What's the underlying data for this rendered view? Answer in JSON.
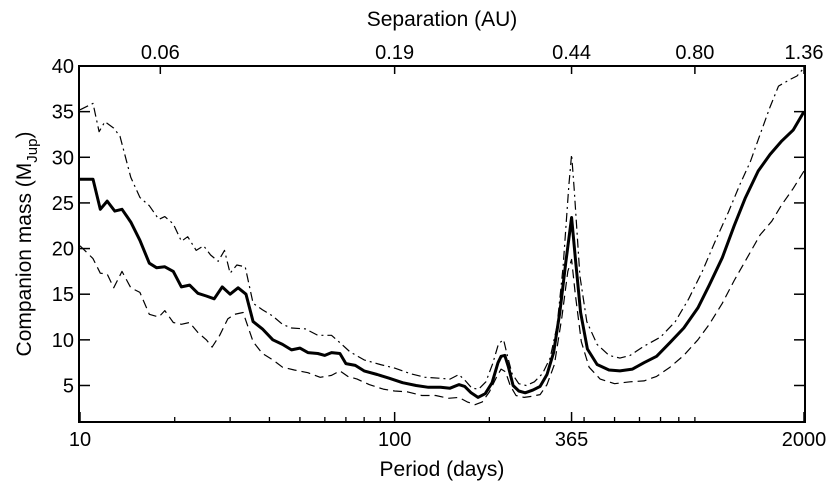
{
  "chart_data": {
    "type": "line",
    "xlabel": "Period (days)",
    "xscale": "log",
    "xlim": [
      10,
      2000
    ],
    "xticks": [
      {
        "value": 10,
        "label": "10"
      },
      {
        "value": 100,
        "label": "100"
      },
      {
        "value": 365,
        "label": "365"
      },
      {
        "value": 2000,
        "label": "2000"
      }
    ],
    "top_axis_label": "Separation (AU)",
    "top_ticks": [
      {
        "period": 18,
        "label": "0.06"
      },
      {
        "period": 100,
        "label": "0.19"
      },
      {
        "period": 365,
        "label": "0.44"
      },
      {
        "period": 900,
        "label": "0.80"
      },
      {
        "period": 2000,
        "label": "1.36"
      }
    ],
    "ylabel": "Companion mass (M",
    "ylabel_sub": "Jup",
    "ylabel_close": ")",
    "ylim": [
      1,
      40
    ],
    "yticks": [
      5,
      10,
      15,
      20,
      25,
      30,
      35,
      40
    ],
    "grid": false,
    "series": [
      {
        "style": "solid",
        "color": "#000000",
        "width": 3,
        "points": [
          [
            10,
            27.6
          ],
          [
            11,
            27.6
          ],
          [
            11.6,
            24.3
          ],
          [
            12.2,
            25.2
          ],
          [
            12.9,
            24.1
          ],
          [
            13.6,
            24.3
          ],
          [
            14.5,
            22.9
          ],
          [
            15.5,
            20.9
          ],
          [
            16.6,
            18.4
          ],
          [
            17.5,
            17.9
          ],
          [
            18.6,
            18.0
          ],
          [
            19.8,
            17.5
          ],
          [
            21,
            15.8
          ],
          [
            22.3,
            16.0
          ],
          [
            23.7,
            15.1
          ],
          [
            25.2,
            14.8
          ],
          [
            26.7,
            14.5
          ],
          [
            28.3,
            15.8
          ],
          [
            30,
            15.0
          ],
          [
            31.8,
            15.7
          ],
          [
            33.7,
            15.0
          ],
          [
            35.5,
            12.0
          ],
          [
            38,
            11.2
          ],
          [
            41,
            10.0
          ],
          [
            44,
            9.5
          ],
          [
            47,
            8.9
          ],
          [
            50,
            9.1
          ],
          [
            53,
            8.6
          ],
          [
            57,
            8.5
          ],
          [
            60,
            8.3
          ],
          [
            63,
            8.6
          ],
          [
            67,
            8.5
          ],
          [
            70,
            7.4
          ],
          [
            75,
            7.2
          ],
          [
            80,
            6.6
          ],
          [
            88,
            6.2
          ],
          [
            96,
            5.8
          ],
          [
            106,
            5.3
          ],
          [
            117,
            5.0
          ],
          [
            128,
            4.8
          ],
          [
            140,
            4.8
          ],
          [
            150,
            4.7
          ],
          [
            160,
            5.1
          ],
          [
            167,
            4.9
          ],
          [
            175,
            4.2
          ],
          [
            184,
            3.7
          ],
          [
            194,
            4.1
          ],
          [
            204,
            5.3
          ],
          [
            213,
            7.5
          ],
          [
            218,
            8.2
          ],
          [
            224,
            8.3
          ],
          [
            230,
            7.0
          ],
          [
            238,
            5.0
          ],
          [
            248,
            4.4
          ],
          [
            260,
            4.2
          ],
          [
            275,
            4.5
          ],
          [
            290,
            4.9
          ],
          [
            305,
            6.2
          ],
          [
            320,
            8.6
          ],
          [
            335,
            13.0
          ],
          [
            350,
            18.5
          ],
          [
            365,
            23.4
          ],
          [
            375,
            19.0
          ],
          [
            390,
            13.0
          ],
          [
            410,
            9.0
          ],
          [
            440,
            7.3
          ],
          [
            480,
            6.7
          ],
          [
            520,
            6.6
          ],
          [
            570,
            6.8
          ],
          [
            620,
            7.5
          ],
          [
            680,
            8.2
          ],
          [
            750,
            9.7
          ],
          [
            830,
            11.3
          ],
          [
            920,
            13.5
          ],
          [
            1000,
            16.0
          ],
          [
            1100,
            19.0
          ],
          [
            1200,
            22.5
          ],
          [
            1300,
            25.5
          ],
          [
            1430,
            28.5
          ],
          [
            1560,
            30.3
          ],
          [
            1700,
            31.8
          ],
          [
            1850,
            33.0
          ],
          [
            2000,
            35.0
          ]
        ]
      },
      {
        "style": "dash-dot",
        "color": "#000000",
        "width": 1.2,
        "points": [
          [
            10,
            35.2
          ],
          [
            11,
            35.9
          ],
          [
            11.5,
            32.8
          ],
          [
            12,
            33.9
          ],
          [
            12.8,
            33.2
          ],
          [
            13.4,
            32.3
          ],
          [
            14.5,
            27.8
          ],
          [
            15.5,
            25.6
          ],
          [
            16.6,
            24.7
          ],
          [
            17.8,
            23.2
          ],
          [
            18.6,
            23.5
          ],
          [
            19.8,
            22.7
          ],
          [
            21,
            20.8
          ],
          [
            22,
            21.3
          ],
          [
            23.4,
            19.8
          ],
          [
            24.7,
            20.3
          ],
          [
            26,
            19.3
          ],
          [
            27.5,
            18.6
          ],
          [
            28.8,
            19.8
          ],
          [
            30,
            17.3
          ],
          [
            31.5,
            18.2
          ],
          [
            33.5,
            18.0
          ],
          [
            35.5,
            14.0
          ],
          [
            38,
            13.3
          ],
          [
            41,
            12.6
          ],
          [
            44,
            11.7
          ],
          [
            47,
            11.3
          ],
          [
            52,
            11.2
          ],
          [
            57,
            10.5
          ],
          [
            63,
            10.5
          ],
          [
            68,
            9.5
          ],
          [
            72,
            8.7
          ],
          [
            80,
            7.8
          ],
          [
            90,
            7.3
          ],
          [
            100,
            6.9
          ],
          [
            112,
            6.3
          ],
          [
            125,
            5.9
          ],
          [
            138,
            5.8
          ],
          [
            150,
            5.7
          ],
          [
            160,
            6.2
          ],
          [
            168,
            5.5
          ],
          [
            176,
            4.7
          ],
          [
            185,
            4.6
          ],
          [
            195,
            5.4
          ],
          [
            205,
            7.4
          ],
          [
            214,
            9.6
          ],
          [
            222,
            10.0
          ],
          [
            228,
            8.3
          ],
          [
            236,
            6.3
          ],
          [
            248,
            5.2
          ],
          [
            262,
            5.0
          ],
          [
            278,
            5.4
          ],
          [
            295,
            6.3
          ],
          [
            312,
            8.0
          ],
          [
            328,
            11.5
          ],
          [
            343,
            18.0
          ],
          [
            358,
            27.0
          ],
          [
            365,
            30.3
          ],
          [
            372,
            26.5
          ],
          [
            388,
            17.0
          ],
          [
            408,
            12.0
          ],
          [
            440,
            9.5
          ],
          [
            480,
            8.3
          ],
          [
            520,
            8.0
          ],
          [
            560,
            8.3
          ],
          [
            620,
            9.3
          ],
          [
            700,
            10.3
          ],
          [
            780,
            12.0
          ],
          [
            860,
            14.5
          ],
          [
            950,
            17.5
          ],
          [
            1050,
            21.0
          ],
          [
            1150,
            24.0
          ],
          [
            1250,
            27.0
          ],
          [
            1350,
            29.5
          ],
          [
            1450,
            32.5
          ],
          [
            1560,
            35.5
          ],
          [
            1660,
            37.8
          ],
          [
            1800,
            38.5
          ],
          [
            1900,
            38.9
          ],
          [
            2000,
            39.8
          ]
        ]
      },
      {
        "style": "dashed",
        "color": "#000000",
        "width": 1.2,
        "points": [
          [
            10,
            20.3
          ],
          [
            11,
            18.9
          ],
          [
            11.6,
            17.3
          ],
          [
            12.2,
            17.2
          ],
          [
            12.8,
            15.7
          ],
          [
            13.6,
            17.5
          ],
          [
            14.5,
            15.7
          ],
          [
            15.5,
            15.2
          ],
          [
            16.6,
            12.8
          ],
          [
            17.8,
            12.5
          ],
          [
            18.6,
            13.2
          ],
          [
            19.8,
            11.9
          ],
          [
            21,
            11.7
          ],
          [
            22.3,
            11.9
          ],
          [
            23.7,
            10.8
          ],
          [
            25.2,
            10.0
          ],
          [
            26.3,
            9.2
          ],
          [
            27.8,
            10.5
          ],
          [
            29.5,
            12.3
          ],
          [
            31,
            12.8
          ],
          [
            33,
            13.0
          ],
          [
            35.5,
            9.8
          ],
          [
            38,
            8.5
          ],
          [
            41,
            7.8
          ],
          [
            44,
            7.0
          ],
          [
            48,
            6.7
          ],
          [
            53,
            6.4
          ],
          [
            58,
            5.9
          ],
          [
            63,
            6.1
          ],
          [
            67,
            6.6
          ],
          [
            71,
            6.0
          ],
          [
            76,
            5.7
          ],
          [
            83,
            5.1
          ],
          [
            92,
            4.6
          ],
          [
            100,
            4.4
          ],
          [
            110,
            4.3
          ],
          [
            122,
            3.9
          ],
          [
            135,
            3.9
          ],
          [
            148,
            3.6
          ],
          [
            160,
            3.7
          ],
          [
            170,
            3.2
          ],
          [
            180,
            2.9
          ],
          [
            190,
            3.2
          ],
          [
            200,
            4.3
          ],
          [
            210,
            5.8
          ],
          [
            218,
            6.8
          ],
          [
            225,
            6.5
          ],
          [
            233,
            5.0
          ],
          [
            243,
            3.9
          ],
          [
            258,
            3.7
          ],
          [
            272,
            3.8
          ],
          [
            290,
            4.0
          ],
          [
            305,
            5.1
          ],
          [
            322,
            7.3
          ],
          [
            340,
            12.5
          ],
          [
            355,
            17.5
          ],
          [
            365,
            18.8
          ],
          [
            375,
            15.0
          ],
          [
            392,
            9.8
          ],
          [
            415,
            7.0
          ],
          [
            450,
            5.7
          ],
          [
            500,
            5.2
          ],
          [
            560,
            5.4
          ],
          [
            620,
            5.5
          ],
          [
            680,
            6.0
          ],
          [
            750,
            7.0
          ],
          [
            830,
            8.3
          ],
          [
            920,
            10.0
          ],
          [
            1000,
            11.7
          ],
          [
            1100,
            14.0
          ],
          [
            1200,
            16.5
          ],
          [
            1320,
            19.0
          ],
          [
            1450,
            21.5
          ],
          [
            1580,
            23.0
          ],
          [
            1700,
            24.8
          ],
          [
            1850,
            26.6
          ],
          [
            2000,
            28.5
          ]
        ]
      }
    ]
  }
}
